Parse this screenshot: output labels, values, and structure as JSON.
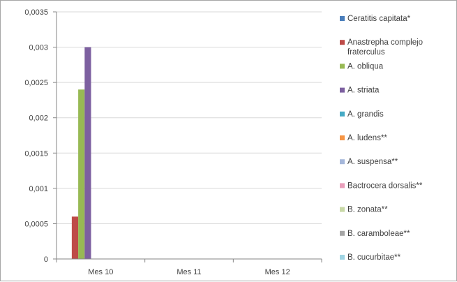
{
  "chart_data": {
    "type": "bar",
    "categories": [
      "Mes 10",
      "Mes 11",
      "Mes 12"
    ],
    "ylim": [
      0,
      0.0035
    ],
    "yticks": [
      "0",
      "0,0005",
      "0,001",
      "0,0015",
      "0,002",
      "0,0025",
      "0,003",
      "0,0035"
    ],
    "grid": true,
    "legend_position": "right",
    "series": [
      {
        "name": "Ceratitis capitata*",
        "color": "#4a7ebb",
        "values": [
          0,
          0,
          0
        ]
      },
      {
        "name": "Anastrepha complejo fraterculus",
        "color": "#be4b48",
        "values": [
          0.0006,
          0,
          0
        ]
      },
      {
        "name": "A. obliqua",
        "color": "#98b954",
        "values": [
          0.0024,
          0,
          0
        ]
      },
      {
        "name": "A. striata",
        "color": "#7d60a0",
        "values": [
          0.003,
          0,
          0
        ]
      },
      {
        "name": "A. grandis",
        "color": "#46aac5",
        "values": [
          0,
          0,
          0
        ]
      },
      {
        "name": "A. ludens**",
        "color": "#f69545",
        "values": [
          0,
          0,
          0
        ]
      },
      {
        "name": "A. suspensa**",
        "color": "#a5b7da",
        "values": [
          0,
          0,
          0
        ]
      },
      {
        "name": "Bactrocera dorsalis**",
        "color": "#e99fbb",
        "values": [
          0,
          0,
          0
        ]
      },
      {
        "name": "B. zonata**",
        "color": "#c9d9a7",
        "values": [
          0,
          0,
          0
        ]
      },
      {
        "name": "B. caramboleae**",
        "color": "#a6a6a6",
        "values": [
          0,
          0,
          0
        ]
      },
      {
        "name": "B. cucurbitae**",
        "color": "#9fd4e3",
        "values": [
          0,
          0,
          0
        ]
      }
    ]
  }
}
